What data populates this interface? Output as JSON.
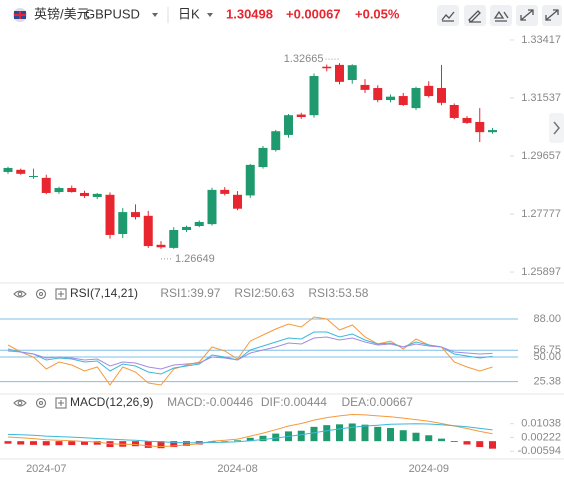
{
  "header": {
    "name": "英镑/美元",
    "symbol": "GBPUSD",
    "period": "日K",
    "price": "1.30498",
    "change": "+0.00067",
    "change_pct": "+0.05%"
  },
  "chart_data": [
    {
      "type": "candlestick",
      "categories": [
        null,
        null,
        null,
        "2024-07",
        null,
        null,
        null,
        null,
        null,
        null,
        null,
        null,
        null,
        null,
        null,
        null,
        null,
        null,
        "2024-08",
        null,
        null,
        null,
        null,
        null,
        null,
        null,
        null,
        null,
        null,
        null,
        null,
        null,
        null,
        "2024-09",
        null,
        null,
        null,
        null,
        null
      ],
      "open": [
        1.2914,
        1.2921,
        1.2898,
        1.2895,
        1.2849,
        1.2862,
        1.2846,
        1.2833,
        1.284,
        1.2713,
        1.2784,
        1.2772,
        1.2678,
        1.2668,
        1.2726,
        1.2739,
        1.2745,
        1.2856,
        1.284,
        1.2838,
        1.293,
        1.2985,
        1.3034,
        1.31,
        1.3098,
        1.3255,
        1.3261,
        1.3212,
        1.3196,
        1.3186,
        1.3147,
        1.316,
        1.3121,
        1.3193,
        1.3186,
        1.3131,
        1.3089,
        1.3076,
        1.3043
      ],
      "high": [
        1.2931,
        1.2925,
        1.2925,
        1.2905,
        1.2866,
        1.287,
        1.2853,
        1.2846,
        1.2848,
        1.2797,
        1.2809,
        1.2788,
        1.269,
        1.2735,
        1.274,
        1.2757,
        1.2863,
        1.2865,
        1.2852,
        1.294,
        1.2998,
        1.305,
        1.3102,
        1.3106,
        1.3233,
        1.3262,
        1.32665,
        1.3263,
        1.3215,
        1.3195,
        1.3165,
        1.317,
        1.319,
        1.3208,
        1.3261,
        1.3136,
        1.3095,
        1.3121,
        1.3057
      ],
      "low": [
        1.2908,
        1.2905,
        1.2892,
        1.2842,
        1.2843,
        1.2847,
        1.283,
        1.2826,
        1.2698,
        1.27,
        1.276,
        1.2668,
        1.26649,
        1.2665,
        1.272,
        1.2735,
        1.274,
        1.2838,
        1.279,
        1.283,
        1.2925,
        1.298,
        1.3025,
        1.3086,
        1.309,
        1.324,
        1.3198,
        1.32,
        1.317,
        1.314,
        1.314,
        1.3128,
        1.3115,
        1.3155,
        1.313,
        1.3085,
        1.307,
        1.3011,
        1.3038
      ],
      "close": [
        1.2927,
        1.2908,
        1.2901,
        1.2846,
        1.2862,
        1.2849,
        1.2836,
        1.2843,
        1.271,
        1.2784,
        1.2768,
        1.2674,
        1.267,
        1.2726,
        1.2736,
        1.2752,
        1.2856,
        1.2843,
        1.2795,
        1.2937,
        1.2992,
        1.3046,
        1.3098,
        1.3092,
        1.3225,
        1.325,
        1.3206,
        1.326,
        1.318,
        1.3147,
        1.3158,
        1.3131,
        1.3186,
        1.316,
        1.3138,
        1.3089,
        1.3073,
        1.3043,
        1.30498
      ],
      "up_color": "#1e9a6e",
      "down_color": "#e8262f",
      "ylim": [
        1.2564,
        1.3374
      ],
      "yticks": [
        1.33417,
        1.31537,
        1.29657,
        1.27777,
        1.25897
      ],
      "annotations": [
        1.32665,
        1.26649
      ],
      "grid": false
    },
    {
      "type": "line",
      "title": "RSI(7,14,21)",
      "ylim": [
        15,
        103
      ],
      "yticks": [
        {
          "value": 88,
          "label": "88.00"
        },
        56.75,
        {
          "value": 50,
          "label": "50.00"
        },
        25.38
      ],
      "grid": true,
      "grid_color": "#7fbfe6",
      "series": [
        {
          "name": "RSI1:39.97",
          "color": "#f59a3c",
          "values": [
            62,
            55,
            50,
            38,
            45,
            42,
            36,
            40,
            22,
            40,
            35,
            24,
            22,
            38,
            42,
            45,
            60,
            56,
            48,
            66,
            72,
            78,
            83,
            80,
            90,
            88,
            77,
            82,
            70,
            63,
            66,
            58,
            68,
            62,
            60,
            45,
            40,
            36,
            39.97
          ]
        },
        {
          "name": "RSI2:50.63",
          "color": "#3db8d9",
          "values": [
            58,
            55,
            53,
            47,
            49,
            48,
            45,
            46,
            36,
            43,
            41,
            35,
            33,
            39,
            41,
            43,
            52,
            50,
            47,
            57,
            61,
            65,
            69,
            68,
            75,
            75,
            70,
            73,
            67,
            63,
            64,
            60,
            65,
            62,
            60,
            53,
            51,
            49,
            50.63
          ]
        },
        {
          "name": "RSI3:53.58",
          "color": "#a38ce0",
          "values": [
            56,
            55,
            53,
            49,
            50,
            49,
            47,
            48,
            41,
            45,
            44,
            40,
            38,
            42,
            43,
            44,
            50,
            49,
            47,
            54,
            57,
            60,
            64,
            63,
            69,
            70,
            67,
            69,
            65,
            62,
            63,
            60,
            63,
            61,
            60,
            55,
            54,
            53,
            53.58
          ]
        }
      ]
    },
    {
      "type": "combo",
      "title": "MACD(12,26,9)",
      "ylim": [
        -0.0094,
        0.0185
      ],
      "yticks": [
        0.01038,
        0.00222,
        -0.00594
      ],
      "grid": false,
      "series": [
        {
          "name": "MACD:-0.00446",
          "type": "bar",
          "color": "#a38ce0",
          "up_color": "#1e9a6e",
          "down_color": "#e8262f",
          "values": [
            -0.0015,
            -0.002,
            -0.0022,
            -0.0025,
            -0.0024,
            -0.0023,
            -0.0022,
            -0.0021,
            -0.0035,
            -0.0033,
            -0.003,
            -0.004,
            -0.0042,
            -0.0035,
            -0.0028,
            -0.002,
            -0.0008,
            -0.0003,
            0.0005,
            0.002,
            0.0032,
            0.0045,
            0.0058,
            0.0062,
            0.0085,
            0.0095,
            0.01,
            0.0105,
            0.0098,
            0.0085,
            0.0078,
            0.0065,
            0.005,
            0.0035,
            0.0015,
            -0.0005,
            -0.002,
            -0.0035,
            -0.00446
          ]
        },
        {
          "name": "DIF:0.00444",
          "type": "line",
          "color": "#f59a3c",
          "values": [
            0.0025,
            0.002,
            0.0015,
            0.0008,
            0.0005,
            0.0002,
            -0.0002,
            -0.0005,
            -0.0015,
            -0.0018,
            -0.002,
            -0.0028,
            -0.0032,
            -0.0028,
            -0.0022,
            -0.0015,
            0.0,
            0.0005,
            0.0012,
            0.003,
            0.0048,
            0.0068,
            0.009,
            0.0105,
            0.0125,
            0.014,
            0.015,
            0.0158,
            0.0156,
            0.015,
            0.0145,
            0.0137,
            0.0128,
            0.0118,
            0.0105,
            0.009,
            0.0075,
            0.0058,
            0.00444
          ]
        },
        {
          "name": "DEA:0.00667",
          "type": "line",
          "color": "#3db8d9",
          "values": [
            0.004,
            0.0038,
            0.0035,
            0.003,
            0.0027,
            0.0024,
            0.002,
            0.0016,
            0.0012,
            0.0008,
            0.0005,
            0.0,
            -0.0004,
            -0.0008,
            -0.001,
            -0.001,
            -0.0008,
            -0.0006,
            -0.0003,
            0.0003,
            0.001,
            0.0018,
            0.0028,
            0.0038,
            0.005,
            0.0062,
            0.0073,
            0.0083,
            0.009,
            0.0095,
            0.01,
            0.0102,
            0.0103,
            0.0102,
            0.0098,
            0.0092,
            0.0085,
            0.0076,
            0.00667
          ]
        }
      ]
    }
  ]
}
